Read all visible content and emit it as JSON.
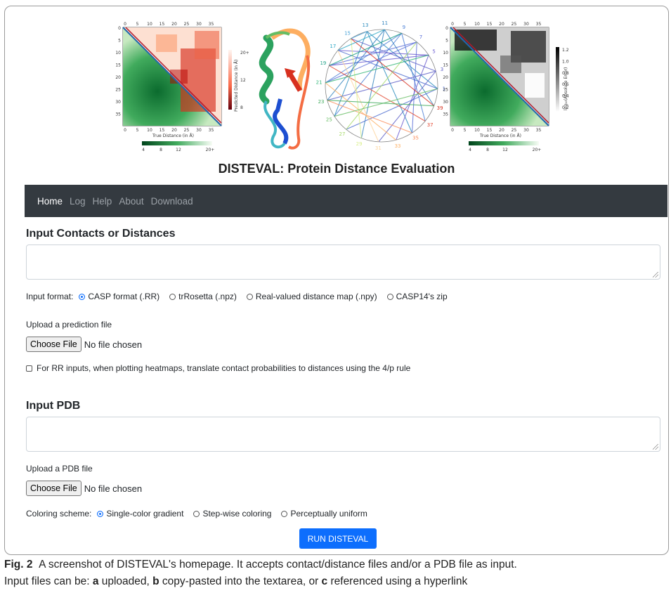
{
  "banner": {
    "heatmap_ticks": [
      "0",
      "5",
      "10",
      "15",
      "20",
      "25",
      "30",
      "35"
    ],
    "heatmap_left": {
      "xlabel": "True Distance (in Å)",
      "ylabel": "Predicted Distance (in Å)",
      "colorbar_ticks": [
        "20+",
        "12",
        "8"
      ],
      "legend_ticks": [
        "4",
        "8",
        "12",
        "20+"
      ]
    },
    "heatmap_right": {
      "xlabel": "True Distance (in Å)",
      "ylabel": "log₁₀(Absolute Error)",
      "colorbar_ticks": [
        "1.2",
        "1.0",
        "0.8",
        "0.6",
        "0.4",
        "0.2"
      ],
      "legend_ticks": [
        "4",
        "8",
        "12",
        "20+"
      ]
    },
    "circle_labels": [
      "13",
      "11",
      "9",
      "7",
      "5",
      "3",
      "1",
      "39",
      "37",
      "35",
      "33",
      "31",
      "29",
      "27",
      "25",
      "23",
      "21",
      "19",
      "17",
      "15"
    ]
  },
  "app_title": "DISTEVAL: Protein Distance Evaluation",
  "nav": {
    "items": [
      "Home",
      "Log",
      "Help",
      "About",
      "Download"
    ],
    "active": "Home"
  },
  "contacts": {
    "title": "Input Contacts or Distances",
    "format_label": "Input format:",
    "formats": [
      "CASP format (.RR)",
      "trRosetta (.npz)",
      "Real-valued distance map (.npy)",
      "CASP14's zip"
    ],
    "format_selected": "CASP format (.RR)",
    "upload_label": "Upload a prediction file",
    "choose_file": "Choose File",
    "no_file": "No file chosen",
    "rule_label": "For RR inputs, when plotting heatmaps, translate contact probabilities to distances using the 4/p rule"
  },
  "pdb": {
    "title": "Input PDB",
    "upload_label": "Upload a PDB file",
    "choose_file": "Choose File",
    "no_file": "No file chosen",
    "coloring_label": "Coloring scheme:",
    "schemes": [
      "Single-color gradient",
      "Step-wise coloring",
      "Perceptually uniform"
    ],
    "scheme_selected": "Single-color gradient"
  },
  "run_label": "RUN DISTEVAL",
  "caption": {
    "fig_label": "Fig. 2",
    "line1": "A screenshot of DISTEVAL's homepage. It accepts contact/distance files and/or a PDB file as input.",
    "line2_prefix": "Input files can be: ",
    "a": "a",
    "a_text": " uploaded, ",
    "b": "b",
    "b_text": " copy-pasted into the textarea, or ",
    "c": "c",
    "c_text": " referenced using a hyperlink"
  },
  "colors": {
    "navbar": "#343a40",
    "primary": "#0d6efd",
    "nav_active": "#ffffff",
    "nav_inactive": "#9ba1a7"
  }
}
